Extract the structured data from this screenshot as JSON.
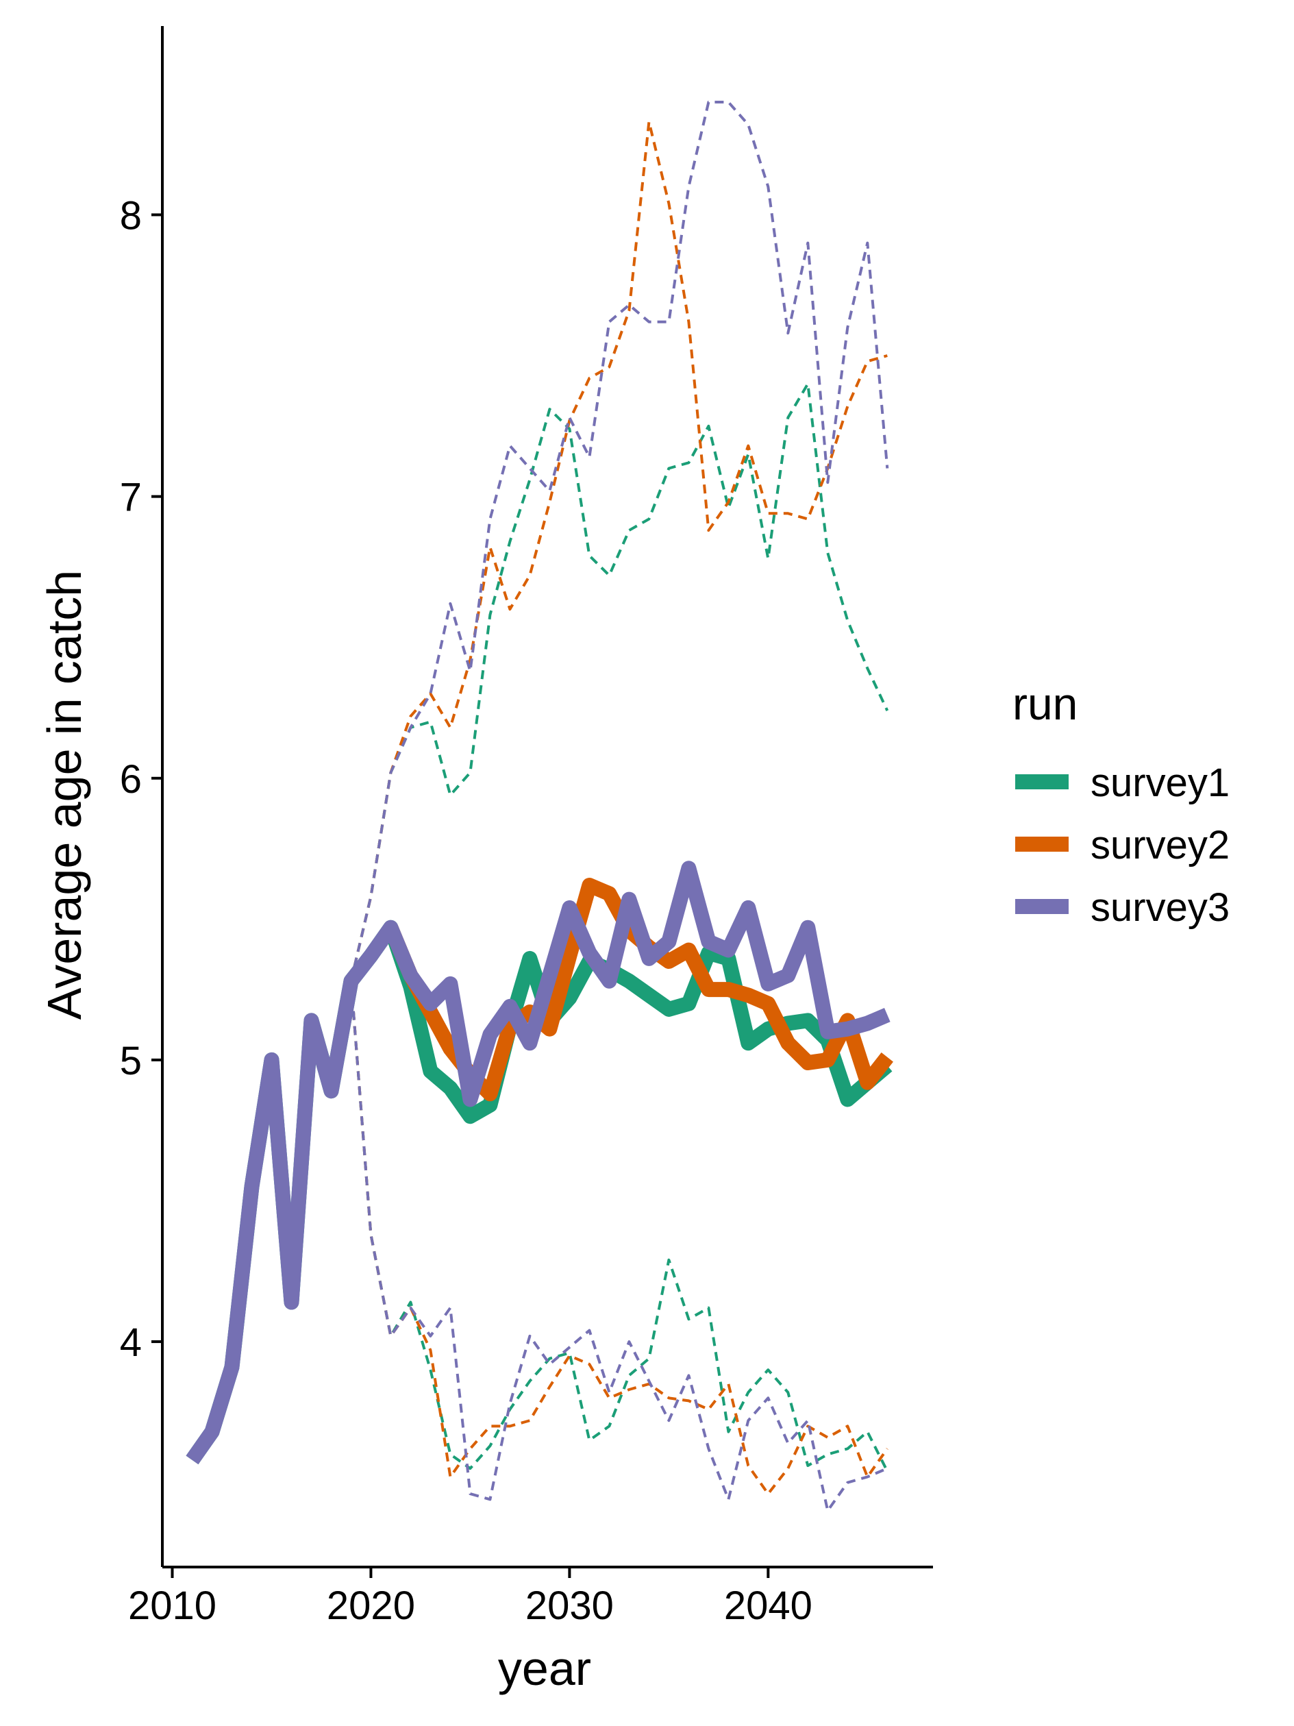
{
  "chart_data": {
    "type": "line",
    "title": "",
    "xlabel": "year",
    "ylabel": "Average age in catch",
    "xlim": [
      2009.5,
      2048.3
    ],
    "ylim": [
      3.2,
      8.67
    ],
    "x_ticks": [
      2010,
      2020,
      2030,
      2040
    ],
    "x_tick_labels": [
      "2010",
      "2020",
      "2030",
      "2040"
    ],
    "y_ticks": [
      4,
      5,
      6,
      7,
      8
    ],
    "y_tick_labels": [
      "4",
      "5",
      "6",
      "7",
      "8"
    ],
    "grid": false,
    "legend": {
      "title": "run",
      "placement": "right",
      "entries": [
        "survey1",
        "survey2",
        "survey3"
      ]
    },
    "colors": {
      "survey1": "#1B9E77",
      "survey2": "#D95F02",
      "survey3": "#7570B3"
    },
    "series": [
      {
        "name": "survey1",
        "style": "median",
        "x": [
          2011,
          2012,
          2013,
          2014,
          2015,
          2016,
          2017,
          2018,
          2019,
          2020,
          2021,
          2022,
          2023,
          2024,
          2025,
          2026,
          2027,
          2028,
          2029,
          2030,
          2031,
          2032,
          2033,
          2034,
          2035,
          2036,
          2037,
          2038,
          2039,
          2040,
          2041,
          2042,
          2043,
          2044,
          2045,
          2046
        ],
        "y": [
          3.58,
          3.68,
          3.91,
          4.55,
          5.0,
          4.14,
          5.14,
          4.89,
          5.28,
          5.37,
          5.47,
          5.26,
          4.96,
          4.9,
          4.8,
          4.84,
          5.12,
          5.36,
          5.14,
          5.22,
          5.35,
          5.32,
          5.28,
          5.23,
          5.18,
          5.2,
          5.38,
          5.36,
          5.06,
          5.11,
          5.13,
          5.14,
          5.07,
          4.86,
          4.92,
          4.98
        ]
      },
      {
        "name": "survey2",
        "style": "median",
        "x": [
          2021,
          2022,
          2023,
          2024,
          2025,
          2026,
          2027,
          2028,
          2029,
          2030,
          2031,
          2032,
          2033,
          2034,
          2035,
          2036,
          2037,
          2038,
          2039,
          2040,
          2041,
          2042,
          2043,
          2044,
          2045,
          2046
        ],
        "y": [
          5.47,
          5.3,
          5.17,
          5.04,
          4.95,
          4.88,
          5.12,
          5.17,
          5.11,
          5.37,
          5.62,
          5.59,
          5.46,
          5.4,
          5.35,
          5.39,
          5.25,
          5.25,
          5.23,
          5.2,
          5.06,
          4.99,
          5.0,
          5.14,
          4.92,
          5.01
        ]
      },
      {
        "name": "survey3",
        "style": "median",
        "x": [
          2011,
          2012,
          2013,
          2014,
          2015,
          2016,
          2017,
          2018,
          2019,
          2020,
          2021,
          2022,
          2023,
          2024,
          2025,
          2026,
          2027,
          2028,
          2029,
          2030,
          2031,
          2032,
          2033,
          2034,
          2035,
          2036,
          2037,
          2038,
          2039,
          2040,
          2041,
          2042,
          2043,
          2044,
          2045,
          2046
        ],
        "y": [
          3.58,
          3.68,
          3.91,
          4.55,
          5.0,
          4.14,
          5.14,
          4.89,
          5.28,
          5.37,
          5.47,
          5.3,
          5.2,
          5.27,
          4.86,
          5.09,
          5.19,
          5.06,
          5.3,
          5.54,
          5.38,
          5.28,
          5.57,
          5.36,
          5.42,
          5.68,
          5.42,
          5.39,
          5.54,
          5.27,
          5.3,
          5.47,
          5.1,
          5.11,
          5.13,
          5.16
        ]
      },
      {
        "name": "survey1",
        "style": "upper",
        "x": [
          2019,
          2020,
          2021,
          2022,
          2023,
          2024,
          2025,
          2026,
          2027,
          2028,
          2029,
          2030,
          2031,
          2032,
          2033,
          2034,
          2035,
          2036,
          2037,
          2038,
          2039,
          2040,
          2041,
          2042,
          2043,
          2044,
          2045,
          2046
        ],
        "y": [
          5.28,
          5.58,
          6.02,
          6.18,
          6.2,
          5.94,
          6.02,
          6.58,
          6.84,
          7.06,
          7.31,
          7.24,
          6.79,
          6.72,
          6.88,
          6.92,
          7.1,
          7.12,
          7.25,
          6.96,
          7.15,
          6.78,
          7.28,
          7.4,
          6.8,
          6.56,
          6.39,
          6.24
        ]
      },
      {
        "name": "survey2",
        "style": "upper",
        "x": [
          2019,
          2020,
          2021,
          2022,
          2023,
          2024,
          2025,
          2026,
          2027,
          2028,
          2029,
          2030,
          2031,
          2032,
          2033,
          2034,
          2035,
          2036,
          2037,
          2038,
          2039,
          2040,
          2041,
          2042,
          2043,
          2044,
          2045,
          2046
        ],
        "y": [
          5.28,
          5.58,
          6.02,
          6.22,
          6.3,
          6.18,
          6.42,
          6.82,
          6.6,
          6.72,
          6.98,
          7.27,
          7.42,
          7.46,
          7.66,
          8.33,
          8.04,
          7.62,
          6.88,
          6.98,
          7.18,
          6.94,
          6.94,
          6.92,
          7.1,
          7.32,
          7.48,
          7.5
        ]
      },
      {
        "name": "survey3",
        "style": "upper",
        "x": [
          2019,
          2020,
          2021,
          2022,
          2023,
          2024,
          2025,
          2026,
          2027,
          2028,
          2029,
          2030,
          2031,
          2032,
          2033,
          2034,
          2035,
          2036,
          2037,
          2038,
          2039,
          2040,
          2041,
          2042,
          2043,
          2044,
          2045,
          2046
        ],
        "y": [
          5.28,
          5.58,
          6.02,
          6.18,
          6.3,
          6.62,
          6.38,
          6.92,
          7.18,
          7.1,
          7.02,
          7.28,
          7.14,
          7.62,
          7.68,
          7.62,
          7.62,
          8.1,
          8.4,
          8.4,
          8.32,
          8.1,
          7.58,
          7.9,
          7.05,
          7.6,
          7.9,
          7.1
        ]
      },
      {
        "name": "survey1",
        "style": "lower",
        "x": [
          2019,
          2020,
          2021,
          2022,
          2023,
          2024,
          2025,
          2026,
          2027,
          2028,
          2029,
          2030,
          2031,
          2032,
          2033,
          2034,
          2035,
          2036,
          2037,
          2038,
          2039,
          2040,
          2041,
          2042,
          2043,
          2044,
          2045,
          2046
        ],
        "y": [
          5.28,
          4.38,
          4.02,
          4.14,
          3.9,
          3.6,
          3.55,
          3.63,
          3.76,
          3.86,
          3.94,
          3.96,
          3.65,
          3.7,
          3.88,
          3.94,
          4.29,
          4.08,
          4.12,
          3.68,
          3.82,
          3.9,
          3.82,
          3.56,
          3.6,
          3.62,
          3.68,
          3.54
        ]
      },
      {
        "name": "survey2",
        "style": "lower",
        "x": [
          2019,
          2020,
          2021,
          2022,
          2023,
          2024,
          2025,
          2026,
          2027,
          2028,
          2029,
          2030,
          2031,
          2032,
          2033,
          2034,
          2035,
          2036,
          2037,
          2038,
          2039,
          2040,
          2041,
          2042,
          2043,
          2044,
          2045,
          2046
        ],
        "y": [
          5.28,
          4.38,
          4.02,
          4.12,
          3.97,
          3.52,
          3.62,
          3.7,
          3.7,
          3.72,
          3.84,
          3.95,
          3.92,
          3.8,
          3.83,
          3.85,
          3.8,
          3.79,
          3.76,
          3.85,
          3.56,
          3.46,
          3.55,
          3.7,
          3.66,
          3.7,
          3.52,
          3.62
        ]
      },
      {
        "name": "survey3",
        "style": "lower",
        "x": [
          2019,
          2020,
          2021,
          2022,
          2023,
          2024,
          2025,
          2026,
          2027,
          2028,
          2029,
          2030,
          2031,
          2032,
          2033,
          2034,
          2035,
          2036,
          2037,
          2038,
          2039,
          2040,
          2041,
          2042,
          2043,
          2044,
          2045,
          2046
        ],
        "y": [
          5.28,
          4.38,
          4.02,
          4.12,
          4.02,
          4.12,
          3.46,
          3.44,
          3.78,
          4.02,
          3.92,
          3.98,
          4.04,
          3.82,
          4.0,
          3.86,
          3.72,
          3.88,
          3.62,
          3.44,
          3.72,
          3.8,
          3.64,
          3.72,
          3.4,
          3.5,
          3.52,
          3.55
        ]
      }
    ]
  }
}
